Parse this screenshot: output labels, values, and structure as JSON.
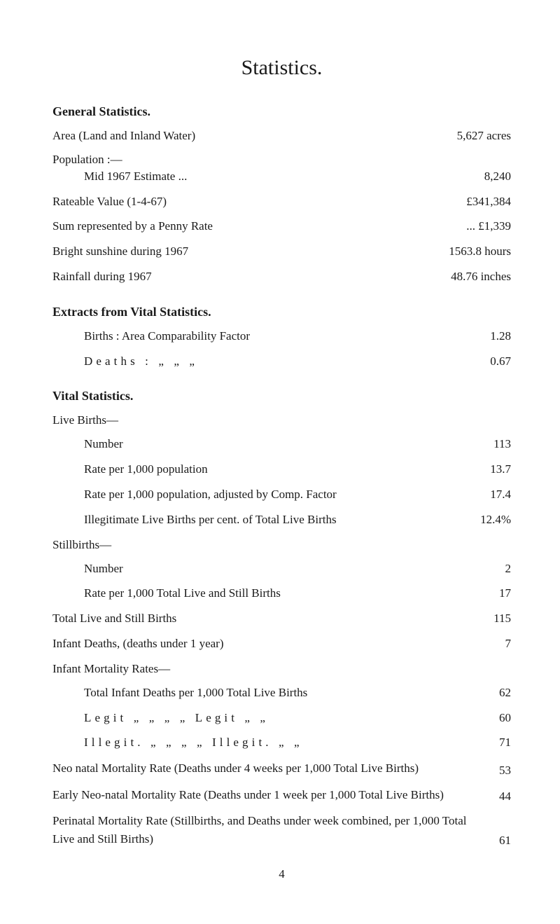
{
  "title": "Statistics.",
  "general": {
    "heading": "General Statistics.",
    "area": {
      "label": "Area (Land and Inland Water)",
      "value": "5,627 acres"
    },
    "population_label": "Population :—",
    "mid_estimate": {
      "label": "Mid 1967 Estimate ...",
      "value": "8,240"
    },
    "rateable": {
      "label": "Rateable Value (1-4-67)",
      "value": "£341,384"
    },
    "penny_rate": {
      "label": "Sum represented by a Penny Rate",
      "value": "... £1,339"
    },
    "sunshine": {
      "label": "Bright sunshine during 1967",
      "value": "1563.8 hours"
    },
    "rainfall": {
      "label": "Rainfall during 1967",
      "value": "48.76 inches"
    }
  },
  "extracts": {
    "heading": "Extracts from Vital Statistics.",
    "births_factor": {
      "label": "Births : Area Comparability Factor",
      "value": "1.28"
    },
    "deaths_factor": {
      "label": "Deaths :  „           „           „",
      "value": "0.67"
    }
  },
  "vital": {
    "heading": "Vital Statistics.",
    "live_births": {
      "heading": "Live Births—",
      "number": {
        "label": "Number",
        "value": "113"
      },
      "rate_pop": {
        "label": "Rate per 1,000 population",
        "value": "13.7"
      },
      "rate_adj": {
        "label": "Rate per 1,000 population, adjusted by Comp. Factor",
        "value": "17.4"
      },
      "illegit": {
        "label": "Illegitimate Live Births per cent. of Total Live Births",
        "value": "12.4%"
      }
    },
    "stillbirths": {
      "heading": "Stillbirths—",
      "number": {
        "label": "Number",
        "value": "2"
      },
      "rate": {
        "label": "Rate per 1,000 Total Live and Still Births",
        "value": "17"
      }
    },
    "total_live_still": {
      "label": "Total Live and Still Births",
      "value": "115"
    },
    "infant_deaths": {
      "label": "Infant Deaths, (deaths under 1 year)",
      "value": "7"
    },
    "infant_mortality": {
      "heading": "Infant Mortality Rates—",
      "total": {
        "label": "Total Infant Deaths per 1,000 Total Live Births",
        "value": "62"
      },
      "legit": {
        "label": "Legit   „        „      „      „   Legit    „        „",
        "value": "60"
      },
      "illegit": {
        "label": "Illegit. „        „      „      „  Illegit.  „        „",
        "value": "71"
      }
    },
    "neonatal": {
      "label": "Neo natal Mortality Rate (Deaths under 4 weeks per 1,000 Total Live Births)",
      "value": "53"
    },
    "early_neonatal": {
      "label": "Early Neo-natal Mortality Rate (Deaths under 1 week per 1,000 Total Live Births)",
      "value": "44"
    },
    "perinatal": {
      "label": "Perinatal Mortality Rate (Stillbirths, and Deaths under week combined, per 1,000 Total Live and Still Births)",
      "value": "61"
    }
  },
  "page_number": "4"
}
